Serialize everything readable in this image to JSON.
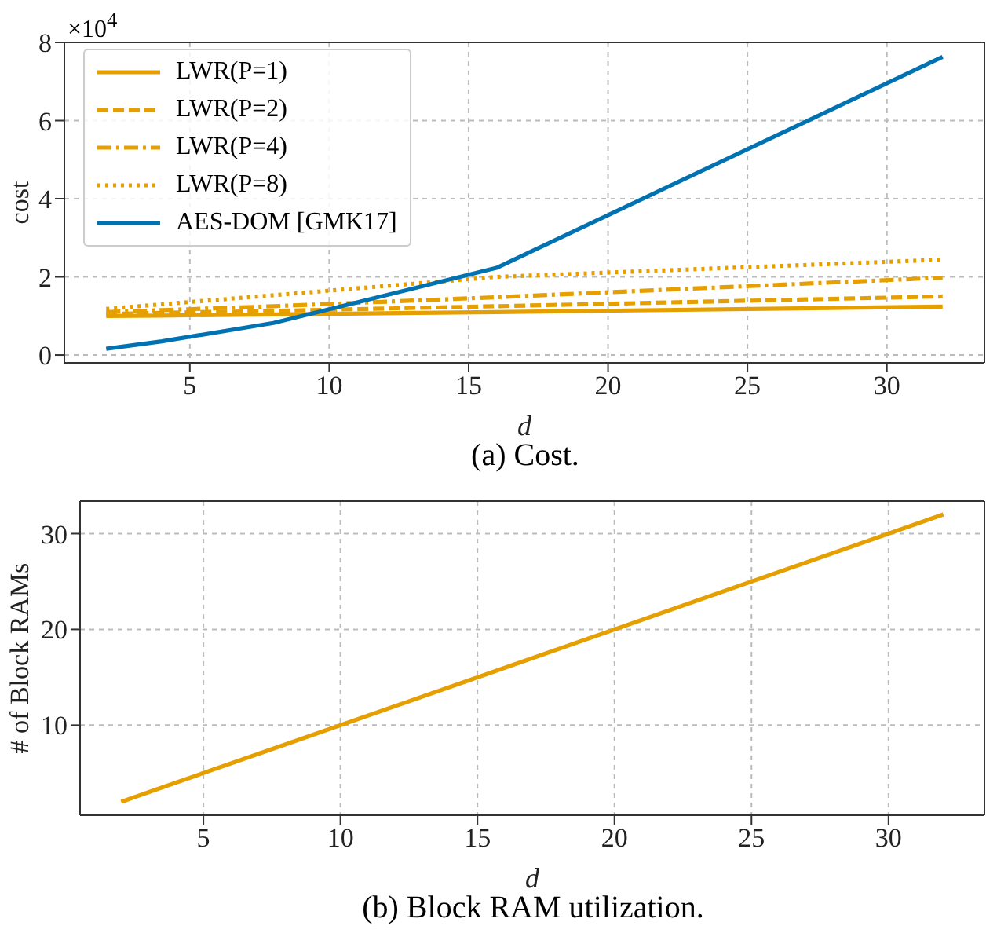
{
  "chart_data": [
    {
      "type": "line",
      "title": "(a) Cost.",
      "xlabel": "d",
      "ylabel": "cost",
      "annotations": [
        "×10$^{4}$"
      ],
      "x": [
        2,
        4,
        8,
        16,
        32
      ],
      "xlim": [
        0.5,
        33.5
      ],
      "xticks": [
        5,
        10,
        15,
        20,
        25,
        30
      ],
      "ylim": [
        -0.2,
        8
      ],
      "yticks": [
        0,
        2,
        4,
        6,
        8
      ],
      "grid": true,
      "legend": "top left",
      "marker": "none",
      "series": [
        {
          "name": "LWR(P=1)",
          "color": "#e69f00",
          "line_style": "solid",
          "values": [
            1.0,
            1.01,
            1.04,
            1.1,
            1.24
          ]
        },
        {
          "name": "LWR(P=2)",
          "color": "#e69f00",
          "line_style": "dashed",
          "values": [
            1.05,
            1.08,
            1.13,
            1.25,
            1.5
          ]
        },
        {
          "name": "LWR(P=4)",
          "color": "#e69f00",
          "line_style": "dashdot",
          "values": [
            1.1,
            1.15,
            1.25,
            1.48,
            1.98
          ]
        },
        {
          "name": "LWR(P=8)",
          "color": "#e69f00",
          "line_style": "dotted",
          "values": [
            1.18,
            1.3,
            1.53,
            2.0,
            2.44
          ]
        },
        {
          "name": "AES-DOM [GMK17]",
          "color": "#0072b2",
          "line_style": "solid",
          "values": [
            0.16,
            0.35,
            0.82,
            2.23,
            7.63
          ]
        }
      ]
    },
    {
      "type": "line",
      "title": "(b) Block RAM utilization.",
      "xlabel": "d",
      "ylabel": "# of Block RAMs",
      "x": [
        2,
        4,
        8,
        16,
        32
      ],
      "xlim": [
        0.5,
        33.5
      ],
      "xticks": [
        5,
        10,
        15,
        20,
        25,
        30
      ],
      "ylim": [
        0.6,
        33.4
      ],
      "yticks": [
        10,
        20,
        30
      ],
      "grid": true,
      "marker": "none",
      "series": [
        {
          "color": "#e69f00",
          "line_style": "solid",
          "values": [
            2,
            4,
            8,
            16,
            32
          ]
        }
      ]
    }
  ]
}
